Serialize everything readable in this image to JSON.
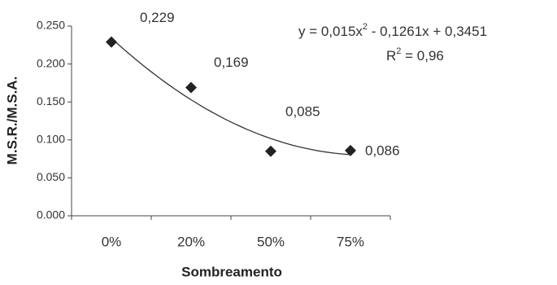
{
  "chart_data": {
    "type": "scatter",
    "categories": [
      "0%",
      "20%",
      "50%",
      "75%"
    ],
    "values": [
      0.229,
      0.169,
      0.085,
      0.086
    ],
    "value_labels": [
      "0,229",
      "0,169",
      "0,085",
      "0,086"
    ],
    "color": "#222222",
    "x_label": "Sombreamento",
    "y_label": "M.S.R./M.S.A.",
    "ylim": [
      0,
      0.25
    ],
    "yticks": [
      {
        "value": 0,
        "label": "0.000"
      },
      {
        "value": 0.05,
        "label": "0.050"
      },
      {
        "value": 0.1,
        "label": "0.100"
      },
      {
        "value": 0.15,
        "label": "0.150"
      },
      {
        "value": 0.2,
        "label": "0.200"
      },
      {
        "value": 0.25,
        "label": "0.250"
      }
    ],
    "trendline": {
      "coefficients": [
        0.015,
        -0.1261,
        0.3451
      ],
      "color": "#333333",
      "equation": [
        "y = 0,015x",
        "2",
        " - 0,1261x + 0,3451"
      ],
      "r_squared": [
        "R",
        "2",
        " = 0,96"
      ]
    }
  }
}
